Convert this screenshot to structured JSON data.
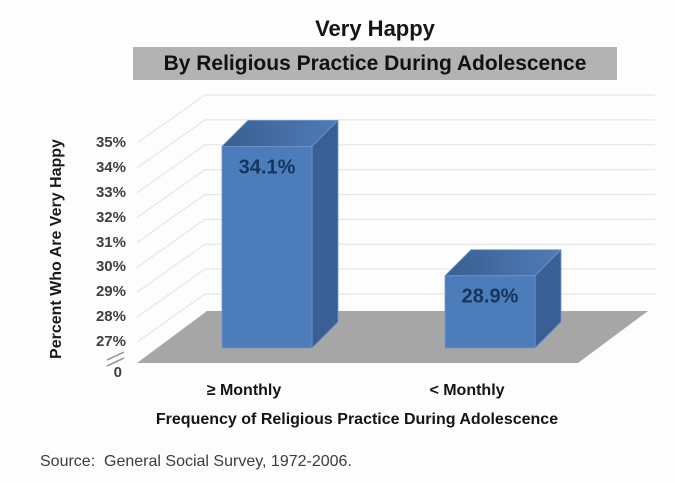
{
  "chart_data": {
    "type": "bar",
    "projection": "3d",
    "title": "Very Happy",
    "subtitle": "By Religious Practice During Adolescence",
    "categories": [
      "≥ Monthly",
      "< Monthly"
    ],
    "series": [
      {
        "name": "Percent Who Are Very Happy",
        "values": [
          34.1,
          28.9
        ]
      }
    ],
    "value_labels": [
      "34.1%",
      "28.9%"
    ],
    "xlabel": "Frequency of Religious Practice During Adolescence",
    "ylabel": "Percent Who Are Very Happy",
    "yticks": [
      "35%",
      "34%",
      "33%",
      "32%",
      "31%",
      "30%",
      "29%",
      "28%",
      "27%"
    ],
    "ytick_values": [
      35,
      34,
      33,
      32,
      31,
      30,
      29,
      28,
      27
    ],
    "zero_label": "0",
    "axis_break": true,
    "ylim_display": [
      27,
      35
    ],
    "grid": true,
    "legend_position": "none",
    "colors": {
      "subtitle_highlight": "#b3b3b3",
      "bar_front": "#4d7cba",
      "bar_side": "#3a5f95",
      "bar_top_dark": "#3a5f91",
      "bar_top_light": "#4f7cb7",
      "bar_edge": "#7497c8",
      "value_label": "#16355d",
      "floor": "#a6a6a6",
      "gridline": "#e6e6e6",
      "tick_text": "#3f3f3f"
    }
  },
  "source": {
    "text": "Source:  General Social Survey, 1972-2006."
  }
}
